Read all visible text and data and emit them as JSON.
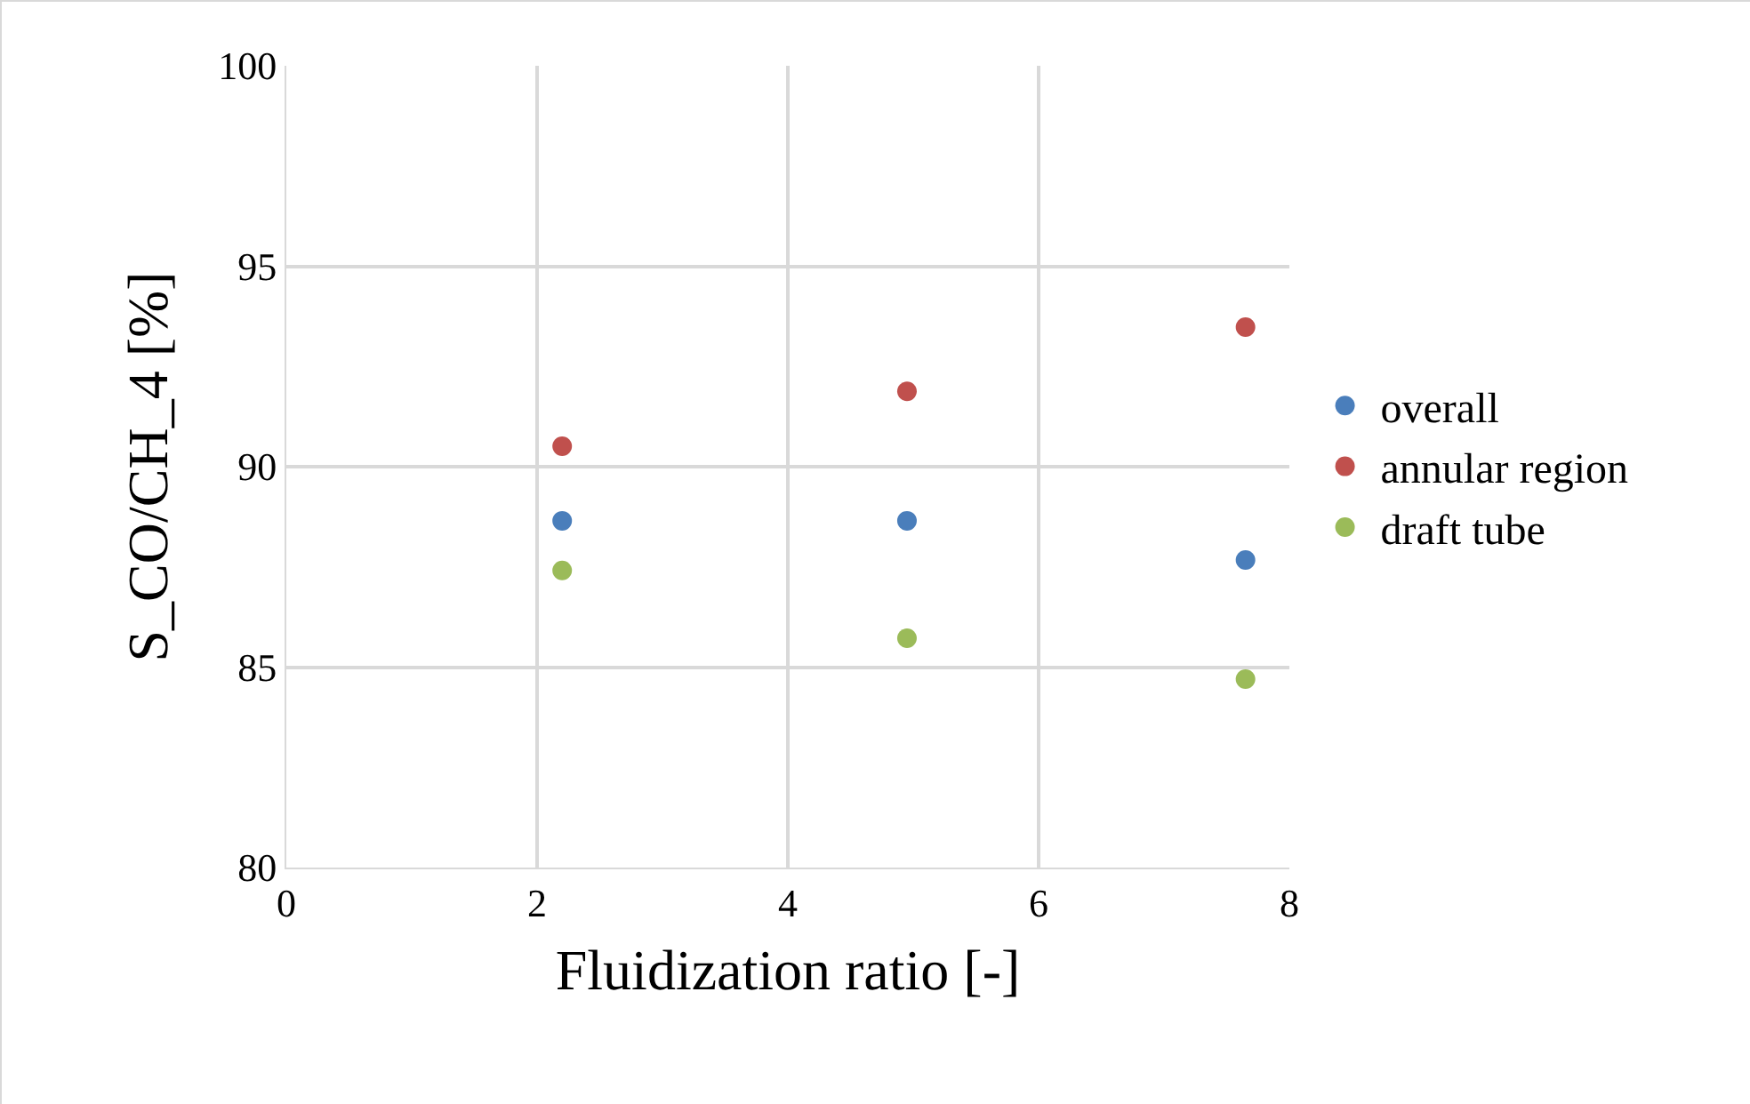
{
  "chart_data": {
    "type": "scatter",
    "xlabel": "Fluidization ratio [-]",
    "ylabel": "S_CO/CH_4 [%]",
    "x": [
      2.2,
      4.95,
      7.65
    ],
    "series": [
      {
        "name": "overall",
        "color": "#4a7ebb",
        "values": [
          88.65,
          88.65,
          87.67
        ]
      },
      {
        "name": "annular region",
        "color": "#c0504d",
        "values": [
          90.51,
          91.88,
          93.48
        ]
      },
      {
        "name": "draft tube",
        "color": "#9bbb59",
        "values": [
          87.41,
          85.72,
          84.7
        ]
      }
    ],
    "xlim": [
      0,
      8
    ],
    "xticks": [
      0,
      2,
      4,
      6,
      8
    ],
    "ylim": [
      80,
      100
    ],
    "yticks": [
      80,
      85,
      90,
      95,
      100
    ],
    "grid": true,
    "legend": "right",
    "marker": "circle"
  }
}
